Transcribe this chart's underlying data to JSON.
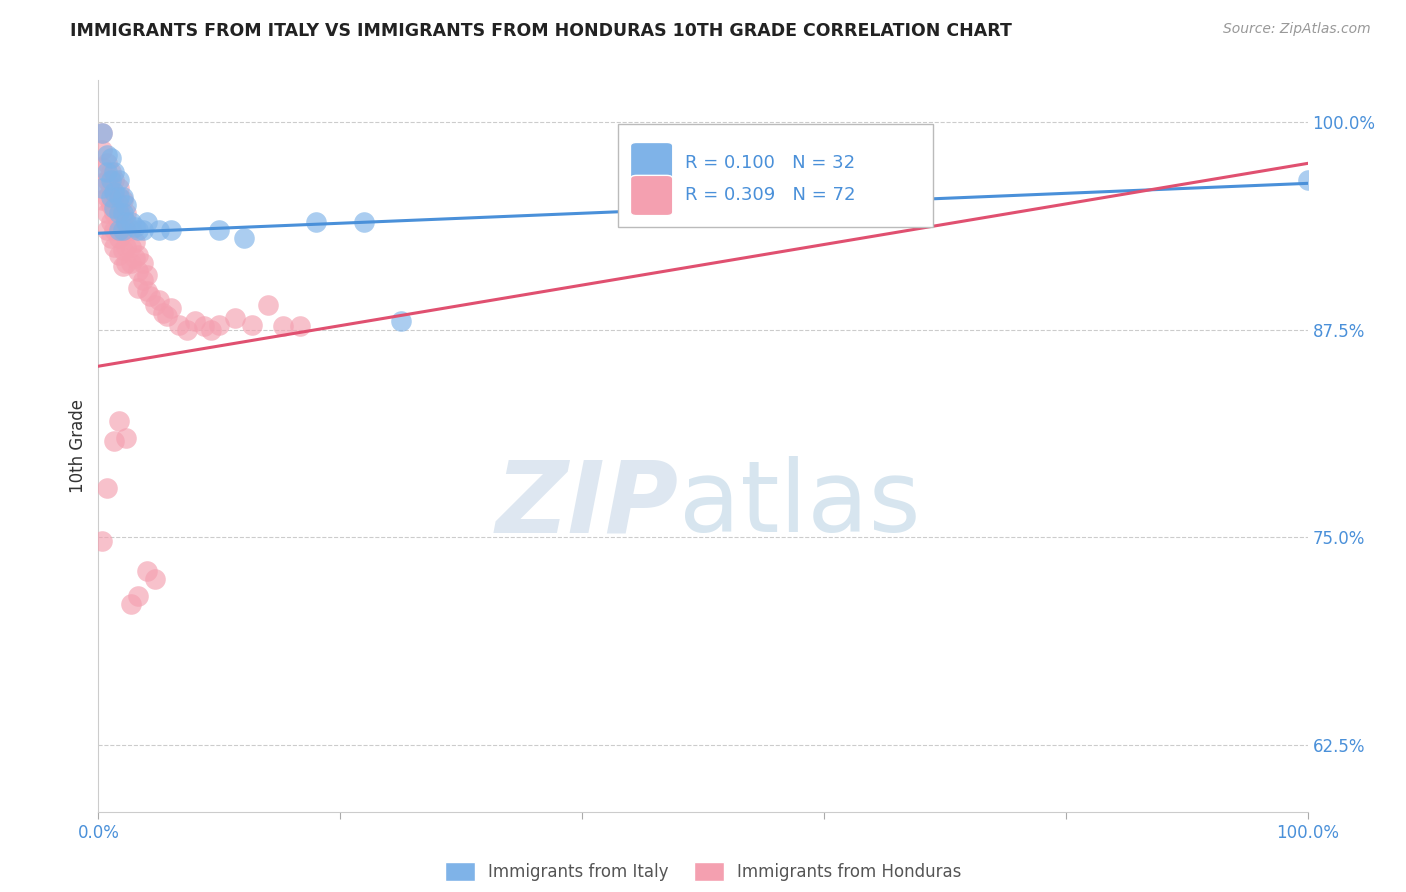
{
  "title": "IMMIGRANTS FROM ITALY VS IMMIGRANTS FROM HONDURAS 10TH GRADE CORRELATION CHART",
  "source": "Source: ZipAtlas.com",
  "ylabel": "10th Grade",
  "r_italy": 0.1,
  "n_italy": 32,
  "r_honduras": 0.309,
  "n_honduras": 72,
  "xlim": [
    0.0,
    1.0
  ],
  "ylim": [
    0.585,
    1.025
  ],
  "yticks": [
    0.625,
    0.75,
    0.875,
    1.0
  ],
  "ytick_labels": [
    "62.5%",
    "75.0%",
    "87.5%",
    "100.0%"
  ],
  "color_italy": "#7fb3e8",
  "color_honduras": "#f4a0b0",
  "color_italy_line": "#4a90d9",
  "color_honduras_line": "#e05070",
  "color_text_blue": "#4a90d9",
  "color_axis_ticks": "#4a90d9",
  "italy_line_x": [
    0.0,
    1.0
  ],
  "italy_line_y": [
    0.933,
    0.963
  ],
  "honduras_line_x": [
    0.0,
    1.0
  ],
  "honduras_line_y": [
    0.853,
    0.975
  ],
  "italy_x": [
    0.003,
    0.007,
    0.007,
    0.01,
    0.01,
    0.01,
    0.013,
    0.013,
    0.013,
    0.017,
    0.017,
    0.017,
    0.017,
    0.02,
    0.02,
    0.02,
    0.023,
    0.023,
    0.027,
    0.03,
    0.033,
    0.037,
    0.04,
    0.05,
    0.06,
    0.1,
    0.12,
    0.18,
    0.22,
    0.25,
    0.003,
    1.0
  ],
  "italy_y": [
    0.993,
    0.98,
    0.97,
    0.978,
    0.965,
    0.955,
    0.97,
    0.958,
    0.948,
    0.965,
    0.955,
    0.945,
    0.935,
    0.955,
    0.945,
    0.935,
    0.95,
    0.94,
    0.94,
    0.937,
    0.935,
    0.935,
    0.94,
    0.935,
    0.935,
    0.935,
    0.93,
    0.94,
    0.94,
    0.88,
    0.96,
    0.965
  ],
  "honduras_x": [
    0.003,
    0.003,
    0.003,
    0.003,
    0.003,
    0.007,
    0.007,
    0.007,
    0.007,
    0.007,
    0.01,
    0.01,
    0.01,
    0.01,
    0.01,
    0.013,
    0.013,
    0.013,
    0.013,
    0.013,
    0.017,
    0.017,
    0.017,
    0.017,
    0.017,
    0.02,
    0.02,
    0.02,
    0.02,
    0.02,
    0.023,
    0.023,
    0.023,
    0.023,
    0.027,
    0.027,
    0.027,
    0.03,
    0.03,
    0.033,
    0.033,
    0.033,
    0.037,
    0.037,
    0.04,
    0.04,
    0.043,
    0.047,
    0.05,
    0.053,
    0.057,
    0.06,
    0.067,
    0.073,
    0.08,
    0.087,
    0.093,
    0.1,
    0.113,
    0.127,
    0.14,
    0.153,
    0.167,
    0.003,
    0.007,
    0.013,
    0.017,
    0.023,
    0.027,
    0.033,
    0.04,
    0.047
  ],
  "honduras_y": [
    0.993,
    0.983,
    0.973,
    0.963,
    0.953,
    0.975,
    0.965,
    0.955,
    0.945,
    0.935,
    0.97,
    0.96,
    0.95,
    0.94,
    0.93,
    0.965,
    0.955,
    0.945,
    0.935,
    0.925,
    0.96,
    0.95,
    0.94,
    0.93,
    0.92,
    0.953,
    0.943,
    0.933,
    0.923,
    0.913,
    0.945,
    0.935,
    0.925,
    0.915,
    0.935,
    0.925,
    0.915,
    0.928,
    0.918,
    0.92,
    0.91,
    0.9,
    0.915,
    0.905,
    0.908,
    0.898,
    0.895,
    0.89,
    0.893,
    0.885,
    0.883,
    0.888,
    0.878,
    0.875,
    0.88,
    0.877,
    0.875,
    0.878,
    0.882,
    0.878,
    0.89,
    0.877,
    0.877,
    0.748,
    0.78,
    0.808,
    0.82,
    0.81,
    0.71,
    0.715,
    0.73,
    0.725
  ]
}
